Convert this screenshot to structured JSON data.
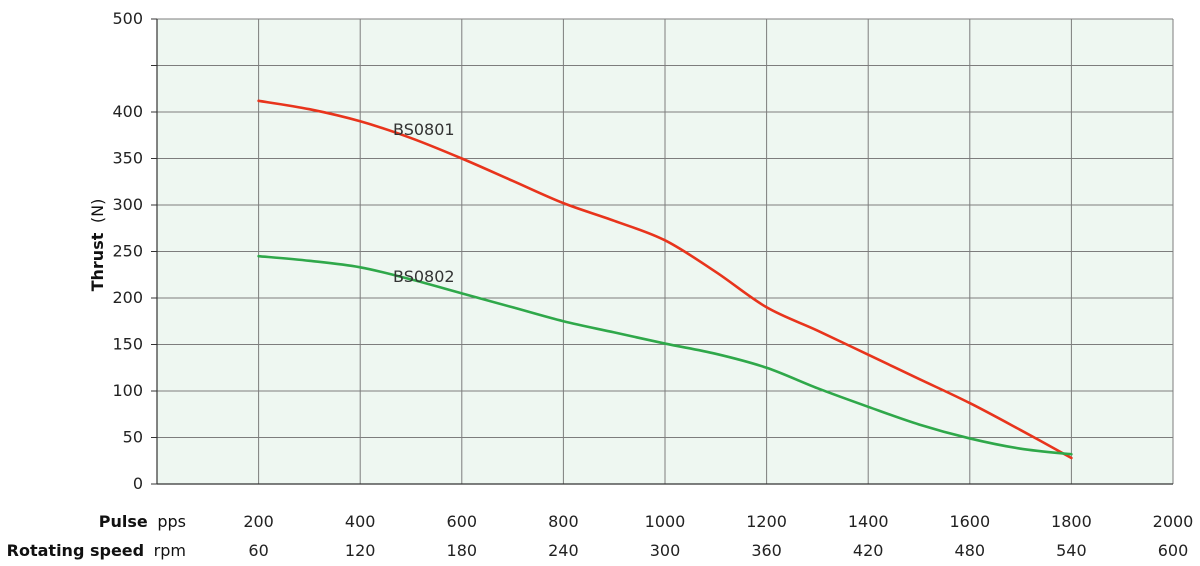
{
  "chart_data": {
    "type": "line",
    "ylabel": "Thrust",
    "yunit": "(N)",
    "ylim": [
      0,
      500
    ],
    "yticks": [
      0,
      50,
      100,
      150,
      200,
      250,
      300,
      350,
      400,
      450,
      500
    ],
    "ytick_labels": [
      "0",
      "50",
      "100",
      "150",
      "200",
      "250",
      "300",
      "350",
      "400",
      "",
      "500"
    ],
    "x_axes": [
      {
        "label": "Pulse",
        "unit": "pps",
        "ticks": [
          "200",
          "400",
          "600",
          "800",
          "1000",
          "1200",
          "1400",
          "1600",
          "1800",
          "2000"
        ]
      },
      {
        "label": "Rotating speed",
        "unit": "rpm",
        "ticks": [
          "60",
          "120",
          "180",
          "240",
          "300",
          "360",
          "420",
          "480",
          "540",
          "600"
        ]
      }
    ],
    "xlim": [
      0,
      2000
    ],
    "grid": true,
    "series": [
      {
        "name": "BS0801",
        "color": "#e8341c",
        "x": [
          200,
          300,
          400,
          500,
          600,
          700,
          800,
          900,
          1000,
          1100,
          1200,
          1300,
          1400,
          1500,
          1600,
          1700,
          1800
        ],
        "y": [
          412,
          403,
          390,
          372,
          350,
          326,
          302,
          283,
          262,
          228,
          190,
          165,
          139,
          113,
          87,
          58,
          28
        ]
      },
      {
        "name": "BS0802",
        "color": "#2fa84a",
        "x": [
          200,
          300,
          400,
          500,
          600,
          700,
          800,
          900,
          1000,
          1100,
          1200,
          1300,
          1400,
          1500,
          1600,
          1700,
          1800
        ],
        "y": [
          245,
          240,
          233,
          220,
          205,
          190,
          175,
          163,
          151,
          140,
          125,
          103,
          83,
          64,
          49,
          38,
          32
        ]
      }
    ]
  }
}
